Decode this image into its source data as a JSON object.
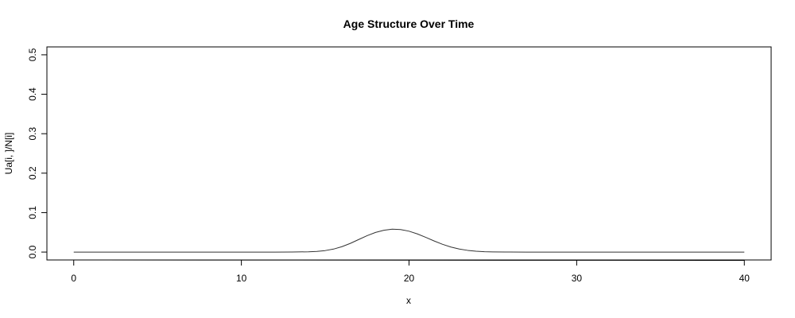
{
  "chart_data": {
    "type": "line",
    "title": "Age Structure Over Time",
    "xlabel": "x",
    "ylabel": "Ua[i, ]/N[i]",
    "xlim": [
      -1.6,
      41.6
    ],
    "ylim": [
      -0.02,
      0.52
    ],
    "x_ticks": [
      0,
      10,
      20,
      30,
      40
    ],
    "y_ticks": [
      0.0,
      0.1,
      0.2,
      0.3,
      0.4,
      0.5
    ],
    "x_tick_labels": [
      "0",
      "10",
      "20",
      "30",
      "40"
    ],
    "y_tick_labels": [
      "0.0",
      "0.1",
      "0.2",
      "0.3",
      "0.4",
      "0.5"
    ],
    "grid": false,
    "series": [
      {
        "color": "#333333",
        "x": [
          0,
          1,
          2,
          3,
          4,
          5,
          6,
          7,
          8,
          9,
          10,
          11,
          12,
          13,
          14,
          14.5,
          15,
          15.5,
          16,
          16.5,
          17,
          17.5,
          18,
          18.5,
          19,
          19.5,
          20,
          20.5,
          21,
          21.5,
          22,
          22.5,
          23,
          23.5,
          24,
          24.5,
          25,
          26,
          27,
          28,
          29,
          30,
          31,
          32,
          33,
          34,
          35,
          36,
          37,
          38,
          39,
          40
        ],
        "y": [
          0,
          0,
          0,
          0,
          0,
          0,
          0,
          0,
          0,
          0,
          0,
          0,
          0,
          0.0001,
          0.0007,
          0.0017,
          0.0038,
          0.0076,
          0.0137,
          0.0221,
          0.0319,
          0.0416,
          0.0498,
          0.0554,
          0.058,
          0.0571,
          0.0529,
          0.046,
          0.0373,
          0.0281,
          0.0197,
          0.0128,
          0.0077,
          0.0043,
          0.0022,
          0.001,
          0.0004,
          0.0001,
          0,
          0,
          0,
          0,
          0,
          0,
          0,
          0,
          0,
          0,
          0,
          0,
          0,
          0
        ]
      }
    ]
  }
}
